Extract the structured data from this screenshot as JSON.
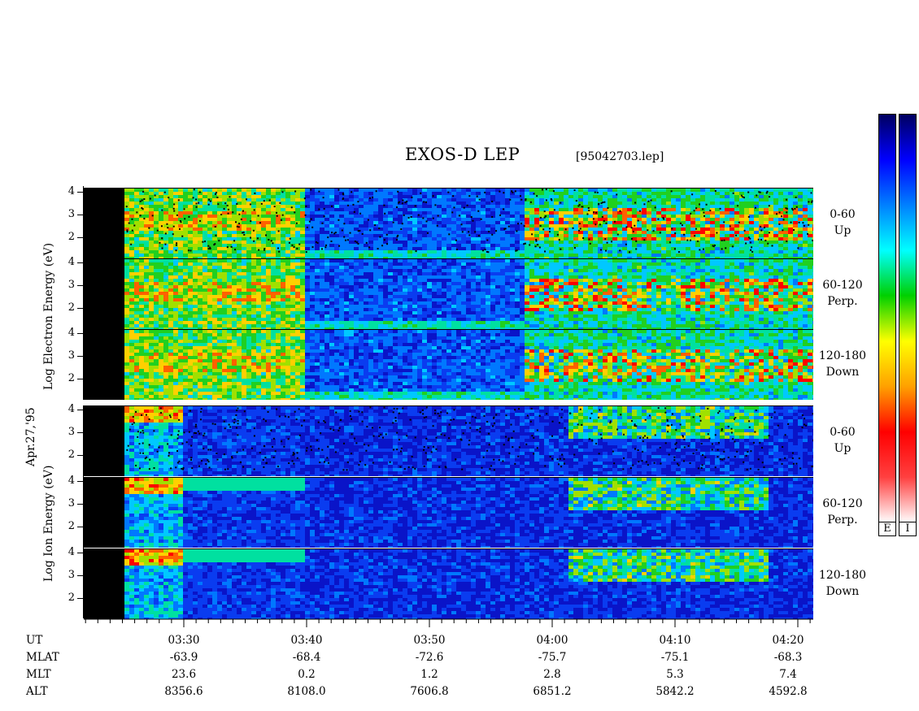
{
  "header": {
    "title": "EXOS-D LEP",
    "file": "[95042703.lep]"
  },
  "date_label": "Apr.27,'95",
  "colors": {
    "background_blue": "#0a14c8",
    "colorbar_stops": [
      "#ffffff",
      "#ff4040",
      "#ff0000",
      "#ffa000",
      "#ffff00",
      "#00d000",
      "#00ffff",
      "#0080ff",
      "#0000ff",
      "#000060"
    ]
  },
  "chart_data": [
    {
      "type": "heatmap",
      "group": "Electron",
      "ylabel": "Log Electron Energy (eV)",
      "panels": [
        {
          "label_line1": "0-60",
          "label_line2": "Up",
          "yticks": [
            "4",
            "3",
            "2"
          ]
        },
        {
          "label_line1": "60-120",
          "label_line2": "Perp.",
          "yticks": [
            "4",
            "3",
            "2"
          ]
        },
        {
          "label_line1": "120-180",
          "label_line2": "Down",
          "yticks": [
            "4",
            "3",
            "2"
          ]
        }
      ]
    },
    {
      "type": "heatmap",
      "group": "Ion",
      "ylabel": "Log Ion Energy (eV)",
      "panels": [
        {
          "label_line1": "0-60",
          "label_line2": "Up",
          "yticks": [
            "4",
            "3",
            "2"
          ]
        },
        {
          "label_line1": "60-120",
          "label_line2": "Perp.",
          "yticks": [
            "4",
            "3",
            "2"
          ]
        },
        {
          "label_line1": "120-180",
          "label_line2": "Down",
          "yticks": [
            "4",
            "3",
            "2"
          ]
        }
      ]
    }
  ],
  "time_axis": {
    "row_labels": [
      "UT",
      "MLAT",
      "MLT",
      "ALT"
    ],
    "ticks": [
      {
        "UT": "03:30",
        "MLAT": "-63.9",
        "MLT": "23.6",
        "ALT": "8356.6"
      },
      {
        "UT": "03:40",
        "MLAT": "-68.4",
        "MLT": "0.2",
        "ALT": "8108.0"
      },
      {
        "UT": "03:50",
        "MLAT": "-72.6",
        "MLT": "1.2",
        "ALT": "7606.8"
      },
      {
        "UT": "04:00",
        "MLAT": "-75.7",
        "MLT": "2.8",
        "ALT": "6851.2"
      },
      {
        "UT": "04:10",
        "MLAT": "-75.1",
        "MLT": "5.3",
        "ALT": "5842.2"
      },
      {
        "UT": "04:20",
        "MLAT": "-68.3",
        "MLT": "7.4",
        "ALT": "4592.8"
      }
    ]
  },
  "colorbars": [
    {
      "label": "E"
    },
    {
      "label": "I"
    }
  ]
}
